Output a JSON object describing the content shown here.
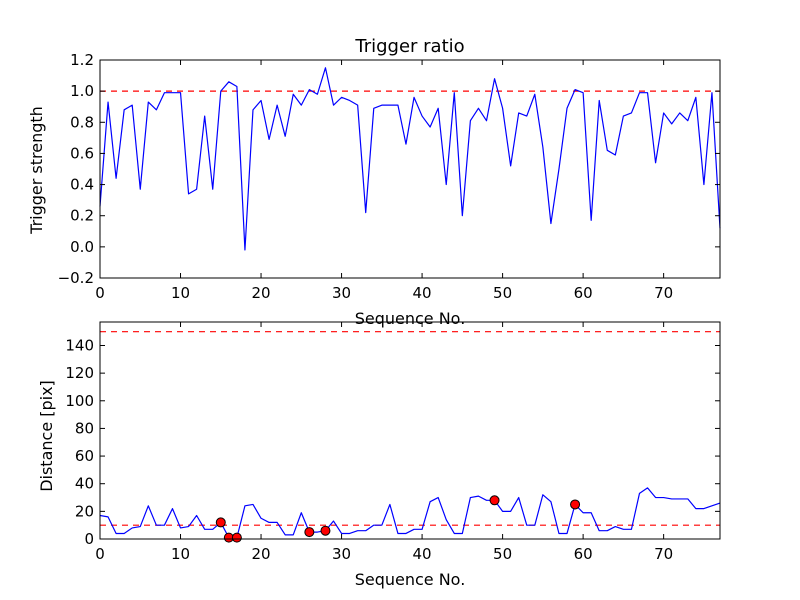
{
  "chart_data": [
    {
      "type": "line",
      "title": "Trigger ratio",
      "xlabel": "Sequence No.",
      "ylabel": "Trigger strength",
      "xlim": [
        0,
        77
      ],
      "ylim": [
        -0.2,
        1.2
      ],
      "xticks": [
        0,
        10,
        20,
        30,
        40,
        50,
        60,
        70
      ],
      "xtick_labels": [
        "0",
        "10",
        "20",
        "30",
        "40",
        "50",
        "60",
        "70"
      ],
      "yticks": [
        -0.2,
        0.0,
        0.2,
        0.4,
        0.6,
        0.8,
        1.0,
        1.2
      ],
      "ytick_labels": [
        "−0.2",
        "0.0",
        "0.2",
        "0.4",
        "0.6",
        "0.8",
        "1.0",
        "1.2"
      ],
      "line_color": "#0000ff",
      "threshold_color": "#ff0000",
      "thresholds": [
        1.0
      ],
      "series": [
        {
          "x": [
            0,
            1,
            2,
            3,
            4,
            5,
            6,
            7,
            8,
            9,
            10,
            11,
            12,
            13,
            14,
            15,
            16,
            17,
            18,
            19,
            20,
            21,
            22,
            23,
            24,
            25,
            26,
            27,
            28,
            29,
            30,
            31,
            32,
            33,
            34,
            35,
            36,
            37,
            38,
            39,
            40,
            41,
            42,
            43,
            44,
            45,
            46,
            47,
            48,
            49,
            50,
            51,
            52,
            53,
            54,
            55,
            56,
            57,
            58,
            59,
            60,
            61,
            62,
            63,
            64,
            65,
            66,
            67,
            68,
            69,
            70,
            71,
            72,
            73,
            74,
            75,
            76,
            77
          ],
          "values": [
            0.26,
            0.93,
            0.44,
            0.88,
            0.91,
            0.37,
            0.93,
            0.88,
            0.99,
            0.99,
            0.99,
            0.34,
            0.37,
            0.84,
            0.37,
            1.0,
            1.06,
            1.03,
            -0.02,
            0.88,
            0.94,
            0.69,
            0.91,
            0.71,
            0.98,
            0.91,
            1.01,
            0.98,
            1.15,
            0.91,
            0.96,
            0.94,
            0.91,
            0.22,
            0.89,
            0.91,
            0.91,
            0.91,
            0.66,
            0.96,
            0.84,
            0.77,
            0.89,
            0.4,
            0.99,
            0.2,
            0.81,
            0.89,
            0.81,
            1.08,
            0.89,
            0.52,
            0.86,
            0.84,
            0.98,
            0.64,
            0.15,
            0.5,
            0.89,
            1.01,
            0.99,
            0.17,
            0.94,
            0.62,
            0.59,
            0.84,
            0.86,
            0.99,
            0.99,
            0.54,
            0.86,
            0.79,
            0.86,
            0.81,
            0.96,
            0.4,
            0.99,
            0.12
          ]
        }
      ]
    },
    {
      "type": "line",
      "title": "",
      "xlabel": "Sequence No.",
      "ylabel": "Distance [pix]",
      "xlim": [
        0,
        77
      ],
      "ylim": [
        0,
        157
      ],
      "xticks": [
        0,
        10,
        20,
        30,
        40,
        50,
        60,
        70
      ],
      "xtick_labels": [
        "0",
        "10",
        "20",
        "30",
        "40",
        "50",
        "60",
        "70"
      ],
      "yticks": [
        0,
        20,
        40,
        60,
        80,
        100,
        120,
        140
      ],
      "ytick_labels": [
        "0",
        "20",
        "40",
        "60",
        "80",
        "100",
        "120",
        "140"
      ],
      "line_color": "#0000ff",
      "threshold_color": "#ff0000",
      "thresholds": [
        150,
        10
      ],
      "marker_color": "#ff0000",
      "series": [
        {
          "x": [
            0,
            1,
            2,
            3,
            4,
            5,
            6,
            7,
            8,
            9,
            10,
            11,
            12,
            13,
            14,
            15,
            16,
            17,
            18,
            19,
            20,
            21,
            22,
            23,
            24,
            25,
            26,
            27,
            28,
            29,
            30,
            31,
            32,
            33,
            34,
            35,
            36,
            37,
            38,
            39,
            40,
            41,
            42,
            43,
            44,
            45,
            46,
            47,
            48,
            49,
            50,
            51,
            52,
            53,
            54,
            55,
            56,
            57,
            58,
            59,
            60,
            61,
            62,
            63,
            64,
            65,
            66,
            67,
            68,
            69,
            70,
            71,
            72,
            73,
            74,
            75,
            76,
            77
          ],
          "values": [
            17,
            16,
            4,
            4,
            8,
            9,
            24,
            10,
            10,
            22,
            8,
            9,
            17,
            7,
            7,
            12,
            1,
            1,
            24,
            25,
            15,
            12,
            12,
            3,
            3,
            19,
            5,
            5,
            6,
            13,
            4,
            4,
            6,
            6,
            10,
            10,
            25,
            4,
            4,
            7,
            7,
            27,
            30,
            14,
            4,
            4,
            30,
            31,
            28,
            28,
            20,
            20,
            30,
            10,
            10,
            32,
            27,
            4,
            4,
            25,
            19,
            19,
            6,
            6,
            9,
            7,
            7,
            33,
            37,
            30,
            30,
            29,
            29,
            29,
            22,
            22,
            24,
            26
          ]
        }
      ],
      "markers": {
        "x": [
          15,
          16,
          17,
          26,
          28,
          49,
          59
        ],
        "values": [
          12,
          1,
          1,
          5,
          6,
          28,
          25
        ]
      }
    }
  ]
}
